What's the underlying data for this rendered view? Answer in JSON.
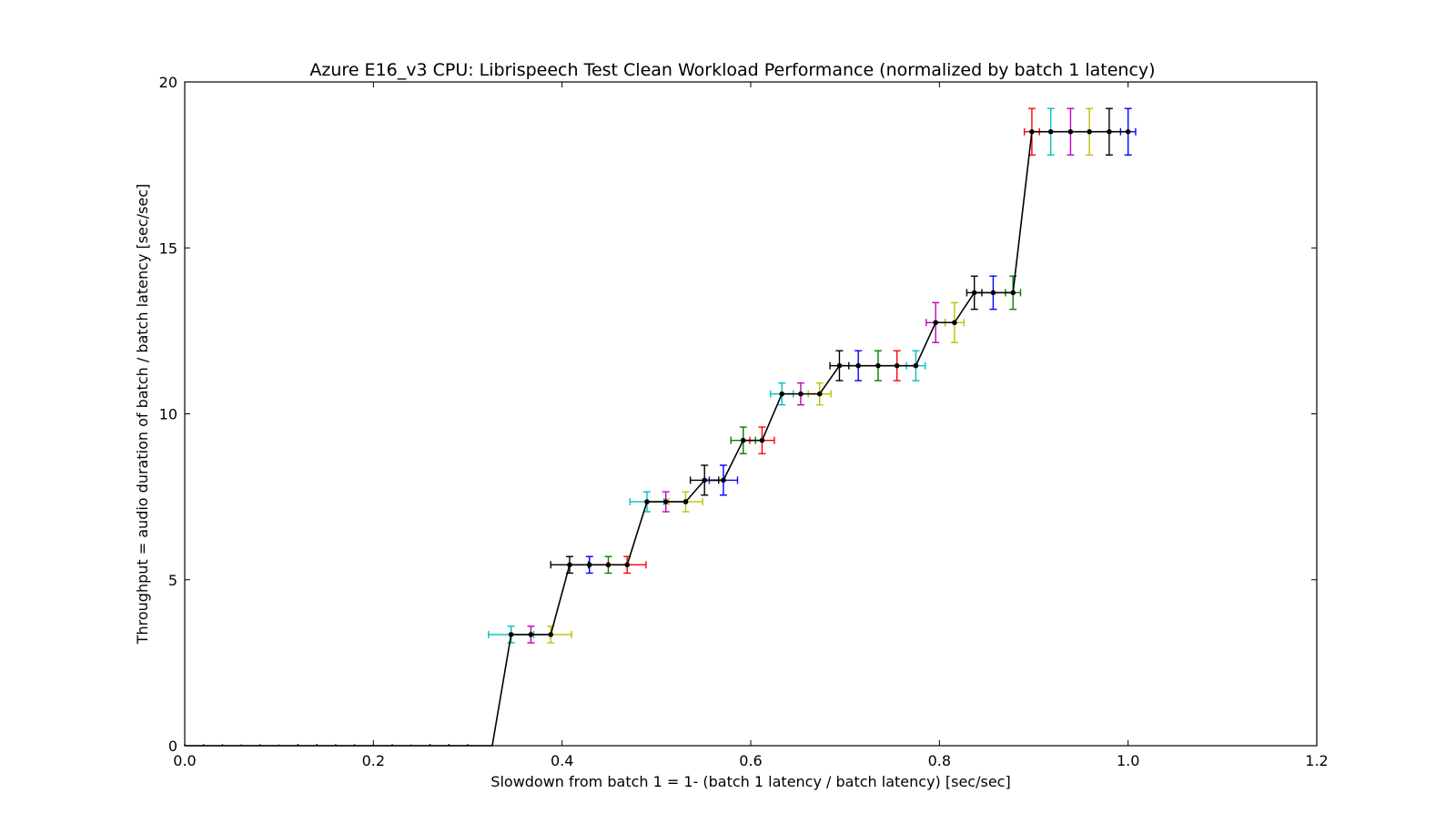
{
  "chart_data": {
    "type": "line",
    "title": "Azure E16_v3 CPU: Librispeech Test Clean Workload Performance (normalized by batch 1 latency)",
    "xlabel": "Slowdown from batch 1 = 1- (batch 1 latency / batch latency) [sec/sec]",
    "ylabel": "Throughput = audio duration of batch / batch latency [sec/sec]",
    "xlim": [
      0.0,
      1.2
    ],
    "ylim": [
      0,
      20
    ],
    "xticks": [
      "0.0",
      "0.2",
      "0.4",
      "0.6",
      "0.8",
      "1.0",
      "1.2"
    ],
    "yticks": [
      "0",
      "5",
      "10",
      "15",
      "20"
    ],
    "grid": false,
    "line_color": "#000000",
    "palette": [
      "#0000ff",
      "#008000",
      "#ff0000",
      "#00bfbf",
      "#bf00bf",
      "#bfbf00",
      "#000000"
    ],
    "points": [
      {
        "x": 0.0,
        "y": 0.0,
        "xerr": 0.0,
        "yerr": 0.0,
        "c": 6
      },
      {
        "x": 0.02,
        "y": 0.0,
        "xerr": 0.0,
        "yerr": 0.0,
        "c": 1
      },
      {
        "x": 0.04,
        "y": 0.0,
        "xerr": 0.0,
        "yerr": 0.0,
        "c": 2
      },
      {
        "x": 0.06,
        "y": 0.0,
        "xerr": 0.0,
        "yerr": 0.0,
        "c": 3
      },
      {
        "x": 0.08,
        "y": 0.0,
        "xerr": 0.0,
        "yerr": 0.0,
        "c": 4
      },
      {
        "x": 0.1,
        "y": 0.0,
        "xerr": 0.0,
        "yerr": 0.0,
        "c": 5
      },
      {
        "x": 0.12,
        "y": 0.0,
        "xerr": 0.0,
        "yerr": 0.0,
        "c": 6
      },
      {
        "x": 0.14,
        "y": 0.0,
        "xerr": 0.0,
        "yerr": 0.0,
        "c": 0
      },
      {
        "x": 0.16,
        "y": 0.0,
        "xerr": 0.0,
        "yerr": 0.0,
        "c": 1
      },
      {
        "x": 0.18,
        "y": 0.0,
        "xerr": 0.0,
        "yerr": 0.0,
        "c": 2
      },
      {
        "x": 0.2,
        "y": 0.0,
        "xerr": 0.0,
        "yerr": 0.0,
        "c": 3
      },
      {
        "x": 0.22,
        "y": 0.0,
        "xerr": 0.0,
        "yerr": 0.0,
        "c": 4
      },
      {
        "x": 0.24,
        "y": 0.0,
        "xerr": 0.0,
        "yerr": 0.0,
        "c": 5
      },
      {
        "x": 0.26,
        "y": 0.0,
        "xerr": 0.0,
        "yerr": 0.0,
        "c": 6
      },
      {
        "x": 0.28,
        "y": 0.0,
        "xerr": 0.0,
        "yerr": 0.0,
        "c": 0
      },
      {
        "x": 0.3,
        "y": 0.0,
        "xerr": 0.0,
        "yerr": 0.0,
        "c": 1
      },
      {
        "x": 0.326,
        "y": 0.0,
        "xerr": 0.0,
        "yerr": 0.0,
        "c": 2
      },
      {
        "x": 0.346,
        "y": 3.35,
        "xerr": 0.024,
        "yerr": 0.25,
        "c": 3
      },
      {
        "x": 0.367,
        "y": 3.35,
        "xerr": 0.0,
        "yerr": 0.25,
        "c": 4
      },
      {
        "x": 0.388,
        "y": 3.35,
        "xerr": 0.022,
        "yerr": 0.25,
        "c": 5
      },
      {
        "x": 0.408,
        "y": 5.45,
        "xerr": 0.02,
        "yerr": 0.25,
        "c": 6
      },
      {
        "x": 0.429,
        "y": 5.45,
        "xerr": 0.0,
        "yerr": 0.25,
        "c": 0
      },
      {
        "x": 0.449,
        "y": 5.45,
        "xerr": 0.0,
        "yerr": 0.25,
        "c": 1
      },
      {
        "x": 0.469,
        "y": 5.45,
        "xerr": 0.02,
        "yerr": 0.25,
        "c": 2
      },
      {
        "x": 0.49,
        "y": 7.35,
        "xerr": 0.018,
        "yerr": 0.3,
        "c": 3
      },
      {
        "x": 0.51,
        "y": 7.35,
        "xerr": 0.0,
        "yerr": 0.3,
        "c": 4
      },
      {
        "x": 0.531,
        "y": 7.35,
        "xerr": 0.018,
        "yerr": 0.3,
        "c": 5
      },
      {
        "x": 0.551,
        "y": 8.0,
        "xerr": 0.015,
        "yerr": 0.45,
        "c": 6
      },
      {
        "x": 0.571,
        "y": 8.0,
        "xerr": 0.015,
        "yerr": 0.45,
        "c": 0
      },
      {
        "x": 0.592,
        "y": 9.2,
        "xerr": 0.013,
        "yerr": 0.4,
        "c": 1
      },
      {
        "x": 0.612,
        "y": 9.2,
        "xerr": 0.013,
        "yerr": 0.4,
        "c": 2
      },
      {
        "x": 0.633,
        "y": 10.6,
        "xerr": 0.012,
        "yerr": 0.33,
        "c": 3
      },
      {
        "x": 0.653,
        "y": 10.6,
        "xerr": 0.0,
        "yerr": 0.33,
        "c": 4
      },
      {
        "x": 0.673,
        "y": 10.6,
        "xerr": 0.012,
        "yerr": 0.33,
        "c": 5
      },
      {
        "x": 0.694,
        "y": 11.45,
        "xerr": 0.01,
        "yerr": 0.45,
        "c": 6
      },
      {
        "x": 0.714,
        "y": 11.45,
        "xerr": 0.0,
        "yerr": 0.45,
        "c": 0
      },
      {
        "x": 0.735,
        "y": 11.45,
        "xerr": 0.0,
        "yerr": 0.45,
        "c": 1
      },
      {
        "x": 0.755,
        "y": 11.45,
        "xerr": 0.0,
        "yerr": 0.45,
        "c": 2
      },
      {
        "x": 0.775,
        "y": 11.45,
        "xerr": 0.01,
        "yerr": 0.45,
        "c": 3
      },
      {
        "x": 0.796,
        "y": 12.75,
        "xerr": 0.01,
        "yerr": 0.6,
        "c": 4
      },
      {
        "x": 0.816,
        "y": 12.75,
        "xerr": 0.01,
        "yerr": 0.6,
        "c": 5
      },
      {
        "x": 0.837,
        "y": 13.65,
        "xerr": 0.008,
        "yerr": 0.5,
        "c": 6
      },
      {
        "x": 0.857,
        "y": 13.65,
        "xerr": 0.0,
        "yerr": 0.5,
        "c": 0
      },
      {
        "x": 0.878,
        "y": 13.65,
        "xerr": 0.008,
        "yerr": 0.5,
        "c": 1
      },
      {
        "x": 0.898,
        "y": 18.5,
        "xerr": 0.008,
        "yerr": 0.7,
        "c": 2
      },
      {
        "x": 0.918,
        "y": 18.5,
        "xerr": 0.0,
        "yerr": 0.7,
        "c": 3
      },
      {
        "x": 0.939,
        "y": 18.5,
        "xerr": 0.0,
        "yerr": 0.7,
        "c": 4
      },
      {
        "x": 0.959,
        "y": 18.5,
        "xerr": 0.0,
        "yerr": 0.7,
        "c": 5
      },
      {
        "x": 0.98,
        "y": 18.5,
        "xerr": 0.0,
        "yerr": 0.7,
        "c": 6
      },
      {
        "x": 1.0,
        "y": 18.5,
        "xerr": 0.008,
        "yerr": 0.7,
        "c": 0
      }
    ]
  }
}
